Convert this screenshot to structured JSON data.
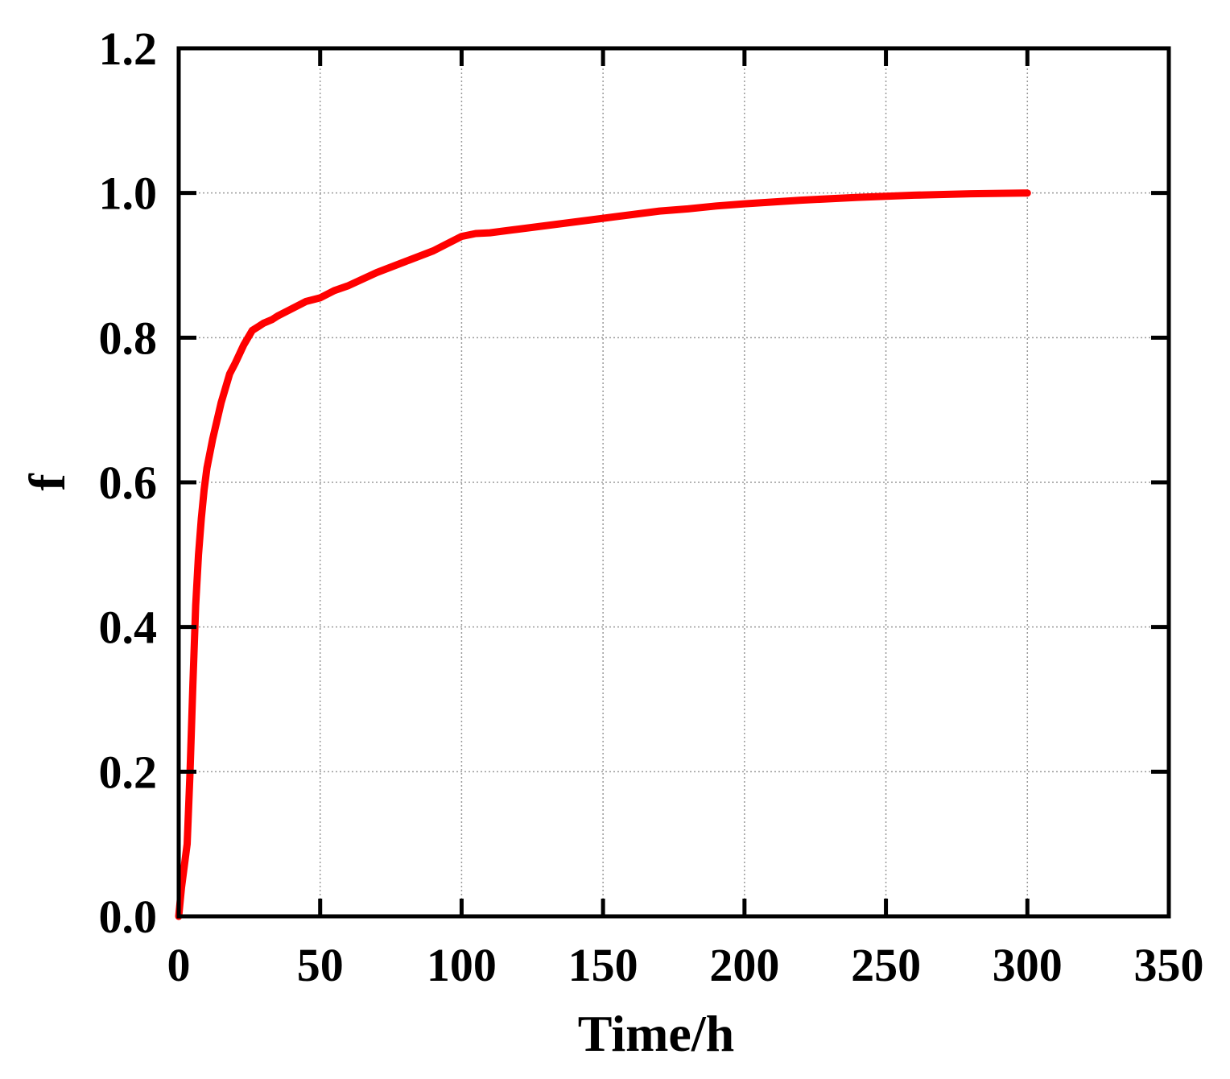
{
  "chart_data": {
    "type": "line",
    "title": "",
    "xlabel": "Time/h",
    "ylabel": "f",
    "xlim": [
      0,
      350
    ],
    "ylim": [
      0,
      1.2
    ],
    "xticks": [
      0,
      50,
      100,
      150,
      200,
      250,
      300,
      350
    ],
    "yticks": [
      0.0,
      0.2,
      0.4,
      0.6,
      0.8,
      1.0,
      1.2
    ],
    "xtick_labels": [
      "0",
      "50",
      "100",
      "150",
      "200",
      "250",
      "300",
      "350"
    ],
    "ytick_labels": [
      "0.0",
      "0.2",
      "0.4",
      "0.6",
      "0.8",
      "1.0",
      "1.2"
    ],
    "grid": true,
    "legend": "none",
    "series": [
      {
        "color": "#ff0000",
        "x": [
          0,
          1,
          2,
          3,
          4,
          5,
          6,
          7,
          8,
          9,
          10,
          12,
          15,
          18,
          20,
          23,
          26,
          28,
          30,
          33,
          35,
          40,
          45,
          50,
          55,
          60,
          70,
          80,
          90,
          95,
          100,
          105,
          110,
          120,
          130,
          140,
          150,
          160,
          170,
          180,
          190,
          200,
          220,
          240,
          260,
          280,
          300
        ],
        "y": [
          0.0,
          0.04,
          0.07,
          0.1,
          0.2,
          0.32,
          0.43,
          0.5,
          0.55,
          0.59,
          0.62,
          0.66,
          0.71,
          0.75,
          0.765,
          0.79,
          0.81,
          0.815,
          0.82,
          0.825,
          0.83,
          0.84,
          0.85,
          0.855,
          0.865,
          0.872,
          0.89,
          0.905,
          0.92,
          0.93,
          0.94,
          0.944,
          0.945,
          0.95,
          0.955,
          0.96,
          0.965,
          0.97,
          0.975,
          0.978,
          0.982,
          0.985,
          0.99,
          0.994,
          0.997,
          0.999,
          1.0
        ]
      }
    ]
  }
}
